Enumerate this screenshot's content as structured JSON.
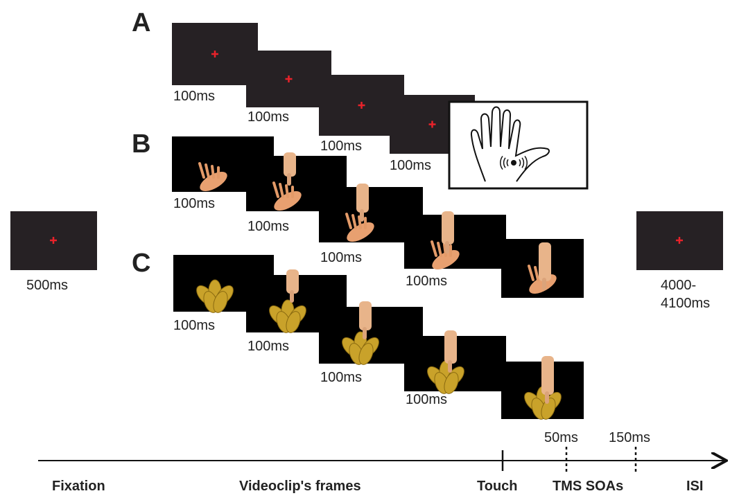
{
  "panels": [
    {
      "label": "A",
      "frames": [
        "100ms",
        "100ms",
        "100ms",
        "100ms"
      ]
    },
    {
      "label": "B",
      "frames": [
        "100ms",
        "100ms",
        "100ms",
        "100ms"
      ]
    },
    {
      "label": "C",
      "frames": [
        "100ms",
        "100ms",
        "100ms",
        "100ms"
      ]
    }
  ],
  "fixation": {
    "duration": "500ms"
  },
  "isi": {
    "duration": [
      "4000-",
      "4100ms"
    ]
  },
  "timeline": {
    "soas": [
      "50ms",
      "150ms"
    ],
    "labels": [
      "Fixation",
      "Videoclip's frames",
      "Touch",
      "TMS SOAs",
      "ISI"
    ]
  }
}
